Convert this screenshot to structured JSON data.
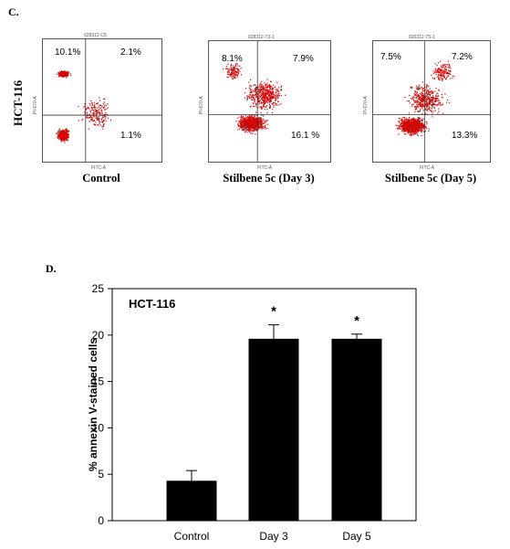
{
  "panel_c": {
    "letter": "C.",
    "row_label": "HCT-116",
    "x_axis_name": "FITC-A",
    "y_axis_name": "PI-670-A",
    "plots": [
      {
        "sample_id": "028312-C5",
        "caption": "Control",
        "ul": "10.1%",
        "ur": "2.1%",
        "lr": "1.1%"
      },
      {
        "sample_id": "028312-T3-1",
        "caption": "Stilbene 5c (Day 3)",
        "ul": "8.1%",
        "ur": "7.9%",
        "lr": "16.1 %"
      },
      {
        "sample_id": "020312-T5-1",
        "caption": "Stilbene 5c (Day 5)",
        "ul": "7.5%",
        "ur": "7.2%",
        "lr": "13.3%"
      }
    ]
  },
  "panel_d": {
    "letter": "D."
  },
  "chart_data": [
    {
      "type": "bar",
      "title": "",
      "annotation": "HCT-116",
      "categories": [
        "Control",
        "Day 3",
        "Day 5"
      ],
      "values": [
        4.3,
        19.6,
        19.6
      ],
      "errors": [
        1.1,
        1.5,
        0.5
      ],
      "significance": [
        "",
        "*",
        "*"
      ],
      "xlabel": "",
      "ylabel": "% annexin V-stained cells",
      "ylim": [
        0,
        25
      ],
      "yticks": [
        "0",
        "5",
        "10",
        "15",
        "20",
        "25"
      ],
      "grid": false,
      "bar_color": "#000000"
    }
  ]
}
